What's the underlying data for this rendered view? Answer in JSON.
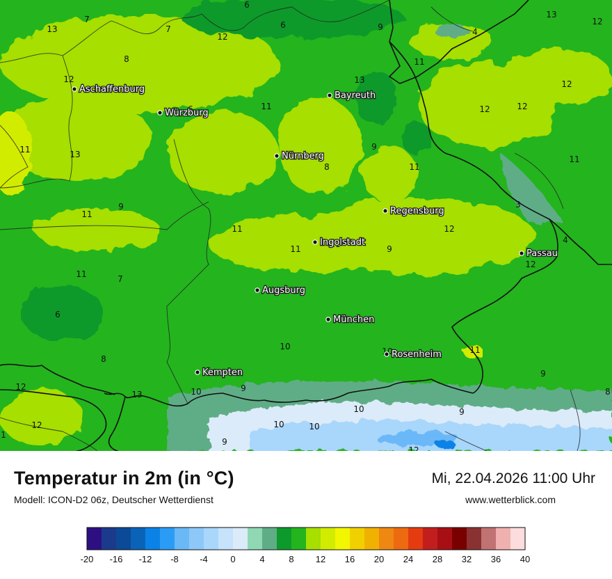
{
  "map": {
    "cities": [
      {
        "name": "Aschaffenburg"
      },
      {
        "name": "Würzburg"
      },
      {
        "name": "Bayreuth"
      },
      {
        "name": "Nürnberg"
      },
      {
        "name": "Regensburg"
      },
      {
        "name": "Ingolstadt"
      },
      {
        "name": "Passau"
      },
      {
        "name": "Augsburg"
      },
      {
        "name": "München"
      },
      {
        "name": "Rosenheim"
      },
      {
        "name": "Kempten"
      }
    ],
    "temperature_labels": [
      "6",
      "13",
      "7",
      "7",
      "12",
      "6",
      "9",
      "4",
      "13",
      "12",
      "8",
      "12",
      "11",
      "13",
      "12",
      "6",
      "11",
      "12",
      "12",
      "11",
      "13",
      "9",
      "8",
      "11",
      "11",
      "9",
      "11",
      "12",
      "3",
      "11",
      "4",
      "11",
      "11",
      "9",
      "12",
      "11",
      "7",
      "6",
      "10",
      "10",
      "11",
      "8",
      "12",
      "13",
      "10",
      "9",
      "9",
      "10",
      "10",
      "10",
      "9",
      "12",
      "8",
      "12",
      "1",
      "9"
    ]
  },
  "footer": {
    "title": "Temperatur in 2m (in °C)",
    "model": "Modell: ICON-D2 06z, Deutscher Wetterdienst",
    "datetime": "Mi, 22.04.2026 11:00 Uhr",
    "website": "www.wetterblick.com"
  },
  "legend": {
    "ticks": [
      "-20",
      "-16",
      "-12",
      "-8",
      "-4",
      "0",
      "4",
      "8",
      "12",
      "16",
      "20",
      "24",
      "28",
      "32",
      "36",
      "40"
    ],
    "colors": [
      "#2e0f82",
      "#1c3a8c",
      "#0a4a96",
      "#0b63b8",
      "#0b82e6",
      "#2b9cf5",
      "#6bb8f7",
      "#8ec8f8",
      "#a9d6fb",
      "#c6e3fb",
      "#dcebf9",
      "#8fd8b3",
      "#5ead86",
      "#0d9a2c",
      "#24b41e",
      "#a6df00",
      "#d2ec00",
      "#f2f600",
      "#f1d000",
      "#f1b100",
      "#ef8812",
      "#ed6a10",
      "#e53b10",
      "#c31e1e",
      "#a80f14",
      "#7a0000",
      "#8a3232",
      "#c17272",
      "#f0b0b0",
      "#fcdcdc"
    ]
  }
}
